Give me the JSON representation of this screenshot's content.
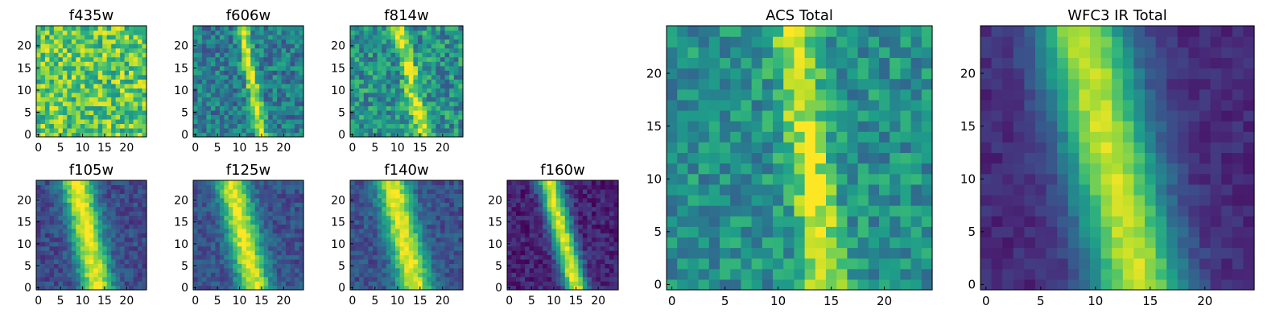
{
  "chart_data": [
    {
      "type": "heatmap",
      "title": "f435w",
      "signal": {
        "center_at_y0": 13,
        "slope": 0,
        "width": 2.2,
        "amp": 0.0
      },
      "noise": 0.5,
      "base": 0.74,
      "xticks": [
        "0",
        "5",
        "10",
        "15",
        "20"
      ],
      "yticks": [
        "0",
        "5",
        "10",
        "15",
        "20"
      ],
      "xlim": [
        -0.5,
        24.5
      ],
      "ylim": [
        -0.5,
        24.5
      ],
      "colormap": "viridis"
    },
    {
      "type": "heatmap",
      "title": "f606w",
      "signal": {
        "center_at_y0": 15,
        "slope": -0.18,
        "width": 1.0,
        "amp": 0.55
      },
      "noise": 0.38,
      "base": 0.42,
      "xticks": [
        "0",
        "5",
        "10",
        "15",
        "20"
      ],
      "yticks": [
        "0",
        "5",
        "10",
        "15",
        "20"
      ],
      "xlim": [
        -0.5,
        24.5
      ],
      "ylim": [
        -0.5,
        24.5
      ],
      "colormap": "viridis"
    },
    {
      "type": "heatmap",
      "title": "f814w",
      "signal": {
        "center_at_y0": 15.5,
        "slope": -0.2,
        "width": 1.2,
        "amp": 0.45
      },
      "noise": 0.45,
      "base": 0.5,
      "xticks": [
        "0",
        "5",
        "10",
        "15",
        "20"
      ],
      "yticks": [
        "0",
        "5",
        "10",
        "15",
        "20"
      ],
      "xlim": [
        -0.5,
        24.5
      ],
      "ylim": [
        -0.5,
        24.5
      ],
      "colormap": "viridis"
    },
    {
      "type": "heatmap",
      "title": "f105w",
      "signal": {
        "center_at_y0": 13.5,
        "slope": -0.2,
        "width": 2.6,
        "amp": 0.75
      },
      "noise": 0.22,
      "base": 0.22,
      "xticks": [
        "0",
        "5",
        "10",
        "15",
        "20"
      ],
      "yticks": [
        "0",
        "5",
        "10",
        "15",
        "20"
      ],
      "xlim": [
        -0.5,
        24.5
      ],
      "ylim": [
        -0.5,
        24.5
      ],
      "colormap": "viridis"
    },
    {
      "type": "heatmap",
      "title": "f125w",
      "signal": {
        "center_at_y0": 13.5,
        "slope": -0.22,
        "width": 2.6,
        "amp": 0.72
      },
      "noise": 0.22,
      "base": 0.25,
      "xticks": [
        "0",
        "5",
        "10",
        "15",
        "20"
      ],
      "yticks": [
        "0",
        "5",
        "10",
        "15",
        "20"
      ],
      "xlim": [
        -0.5,
        24.5
      ],
      "ylim": [
        -0.5,
        24.5
      ],
      "colormap": "viridis"
    },
    {
      "type": "heatmap",
      "title": "f140w",
      "signal": {
        "center_at_y0": 14,
        "slope": -0.22,
        "width": 2.6,
        "amp": 0.72
      },
      "noise": 0.22,
      "base": 0.25,
      "xticks": [
        "0",
        "5",
        "10",
        "15",
        "20"
      ],
      "yticks": [
        "0",
        "5",
        "10",
        "15",
        "20"
      ],
      "xlim": [
        -0.5,
        24.5
      ],
      "ylim": [
        -0.5,
        24.5
      ],
      "colormap": "viridis"
    },
    {
      "type": "heatmap",
      "title": "f160w",
      "signal": {
        "center_at_y0": 15,
        "slope": -0.25,
        "width": 1.8,
        "amp": 0.85
      },
      "noise": 0.2,
      "base": 0.1,
      "xticks": [
        "0",
        "5",
        "10",
        "15",
        "20"
      ],
      "yticks": [
        "0",
        "5",
        "10",
        "15",
        "20"
      ],
      "xlim": [
        -0.5,
        24.5
      ],
      "ylim": [
        -0.5,
        24.5
      ],
      "colormap": "viridis"
    },
    {
      "type": "heatmap",
      "title": "ACS Total",
      "signal": {
        "center_at_y0": 14.5,
        "slope": -0.13,
        "width": 1.4,
        "amp": 0.45
      },
      "noise": 0.35,
      "base": 0.5,
      "xticks": [
        "0",
        "5",
        "10",
        "15",
        "20"
      ],
      "yticks": [
        "0",
        "5",
        "10",
        "15",
        "20"
      ],
      "xlim": [
        -0.5,
        24.5
      ],
      "ylim": [
        -0.5,
        24.5
      ],
      "colormap": "viridis"
    },
    {
      "type": "heatmap",
      "title": "WFC3 IR Total",
      "signal": {
        "center_at_y0": 14,
        "slope": -0.22,
        "width": 3.0,
        "amp": 0.8
      },
      "noise": 0.12,
      "base": 0.12,
      "xticks": [
        "0",
        "5",
        "10",
        "15",
        "20"
      ],
      "yticks": [
        "0",
        "5",
        "10",
        "15",
        "20"
      ],
      "xlim": [
        -0.5,
        24.5
      ],
      "ylim": [
        -0.5,
        24.5
      ],
      "colormap": "viridis"
    }
  ],
  "colors": {
    "frame": "#000000",
    "background": "#ffffff"
  }
}
